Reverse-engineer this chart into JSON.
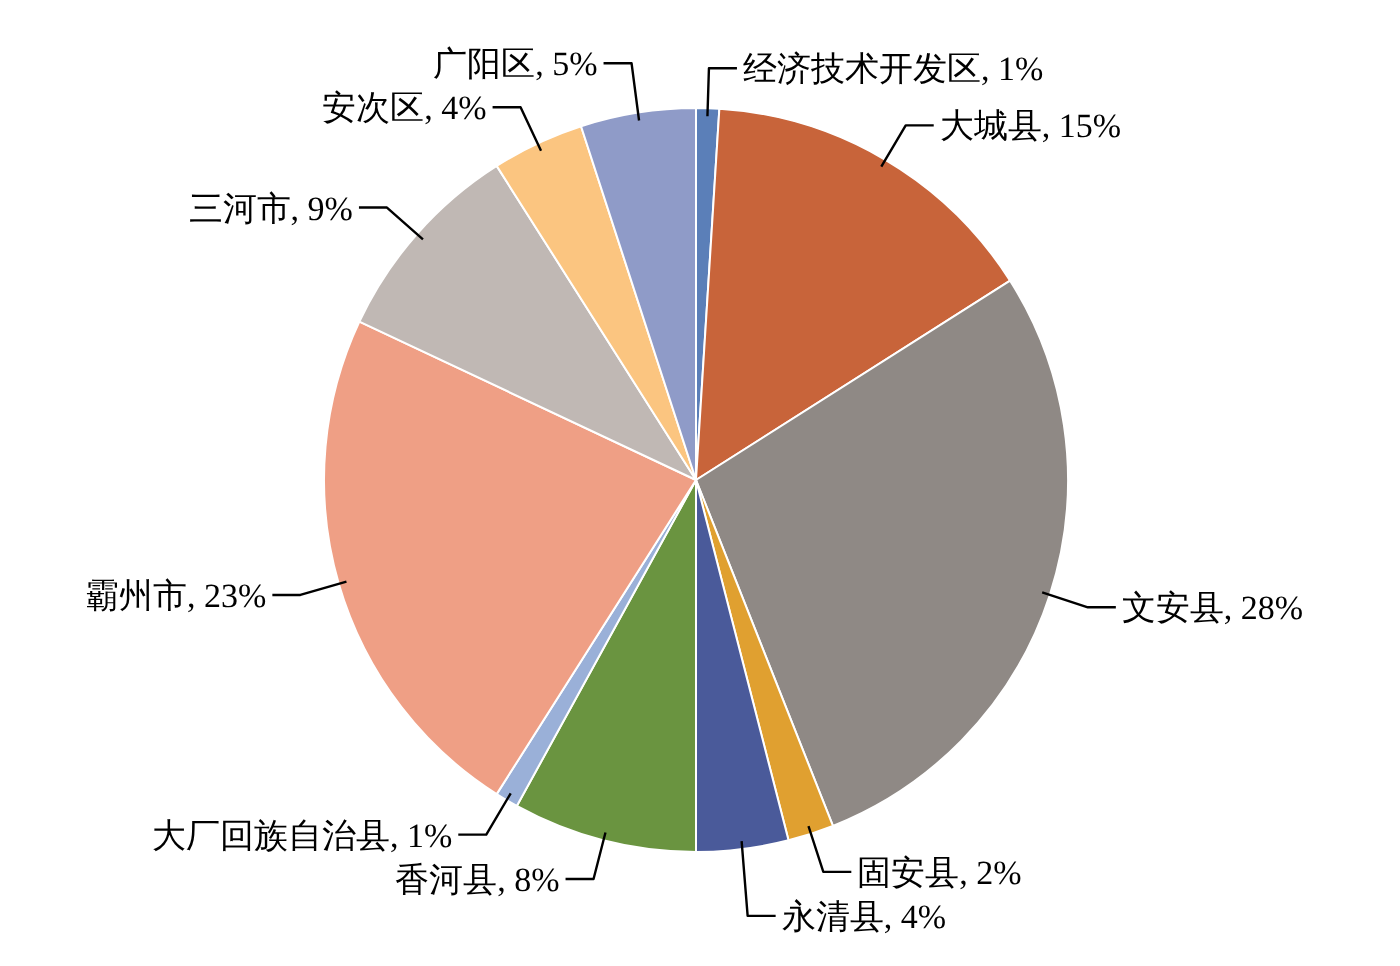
{
  "chart_data": {
    "type": "pie",
    "categories": [
      "经济技术开发区",
      "大城县",
      "文安县",
      "固安县",
      "永清县",
      "香河县",
      "大厂回族自治县",
      "霸州市",
      "三河市",
      "安次区",
      "广阳区"
    ],
    "values": [
      1,
      15,
      28,
      2,
      4,
      8,
      1,
      23,
      9,
      4,
      5
    ],
    "value_labels": [
      "1%",
      "15%",
      "28%",
      "2%",
      "4%",
      "8%",
      "1%",
      "23%",
      "9%",
      "4%",
      "5%"
    ],
    "colors": [
      "#5b7fb8",
      "#c8643a",
      "#8f8985",
      "#e0a030",
      "#4a5a9a",
      "#6a9440",
      "#9ab0d8",
      "#ef9f85",
      "#c0b8b4",
      "#fbc580",
      "#8f9bc8"
    ]
  }
}
